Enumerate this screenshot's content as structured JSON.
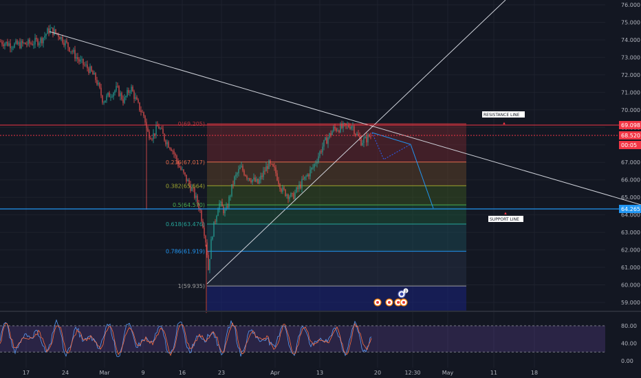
{
  "chart_data": [
    {
      "type": "candlestick",
      "ylim": [
        58.3,
        76.3
      ],
      "yticks": [
        "76.000",
        "75.000",
        "74.000",
        "73.000",
        "72.000",
        "71.000",
        "70.000",
        "69.000",
        "68.000",
        "67.000",
        "66.000",
        "65.000",
        "64.000",
        "63.000",
        "62.000",
        "61.000",
        "60.000",
        "59.000"
      ],
      "xticks": [
        "17",
        "24",
        "Mar",
        "9",
        "16",
        "23",
        "Apr",
        "13",
        "20",
        "12:30",
        "May",
        "11",
        "18"
      ],
      "price_tags": [
        {
          "label": "69.098",
          "value": 69.098,
          "color": "#f23645"
        },
        {
          "label": "68.520",
          "value": 68.52,
          "color": "#f23645"
        },
        {
          "label": "00:05",
          "value": 68.0,
          "color": "#f23645"
        },
        {
          "label": "64.265",
          "value": 64.265,
          "color": "#2196f3"
        }
      ],
      "fibonacci": [
        {
          "label": "0(69.205)",
          "value": 69.205,
          "color": "#c2353c"
        },
        {
          "label": "0.236(67.017)",
          "value": 67.017,
          "color": "#e26a4a"
        },
        {
          "label": "0.382(65.664)",
          "value": 65.664,
          "color": "#9ea52f"
        },
        {
          "label": "0.5(64.570)",
          "value": 64.57,
          "color": "#4caf50"
        },
        {
          "label": "0.618(63.476)",
          "value": 63.476,
          "color": "#26a69a"
        },
        {
          "label": "0.786(61.919)",
          "value": 61.919,
          "color": "#2196f3"
        },
        {
          "label": "1(59.935)",
          "value": 59.935,
          "color": "#9e9e9e"
        }
      ],
      "annotations": [
        {
          "label": "RESISTANCE LINE",
          "value": 69.098
        },
        {
          "label": "SUPPORT LINE",
          "value": 64.265
        }
      ],
      "event_badge": "3"
    },
    {
      "type": "line",
      "name": "",
      "ylim": [
        -3,
        98
      ],
      "yticks": [
        "80.00",
        "40.00",
        "0.00"
      ],
      "band": [
        20,
        80
      ]
    }
  ],
  "colors": {
    "background": "#131722",
    "grid": "#1e222d",
    "up": "#26a69a",
    "down": "#ef5350",
    "resistance": "#f23645",
    "support": "#2196f3",
    "oscillator": "#7e57c2"
  }
}
